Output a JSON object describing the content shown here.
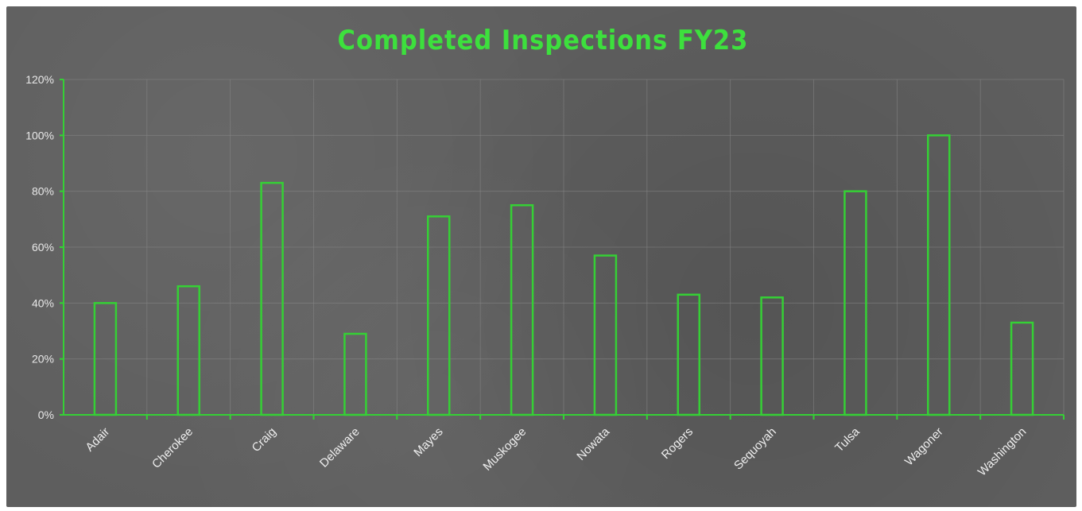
{
  "chart_data": {
    "type": "bar",
    "title": "Completed Inspections FY23",
    "xlabel": "",
    "ylabel": "",
    "categories": [
      "Adair",
      "Cherokee",
      "Craig",
      "Delaware",
      "Mayes",
      "Muskogee",
      "Nowata",
      "Rogers",
      "Sequoyah",
      "Tulsa",
      "Wagoner",
      "Washington"
    ],
    "values": [
      40,
      46,
      83,
      29,
      71,
      75,
      57,
      43,
      42,
      80,
      100,
      33
    ],
    "ylim": [
      0,
      120
    ],
    "yticks": [
      "0%",
      "20%",
      "40%",
      "60%",
      "80%",
      "100%",
      "120%"
    ],
    "grid": true,
    "legend": "none",
    "colors": {
      "bar_outline": "#35d035",
      "title": "#3de03d",
      "background": "#5e5e5e"
    }
  }
}
